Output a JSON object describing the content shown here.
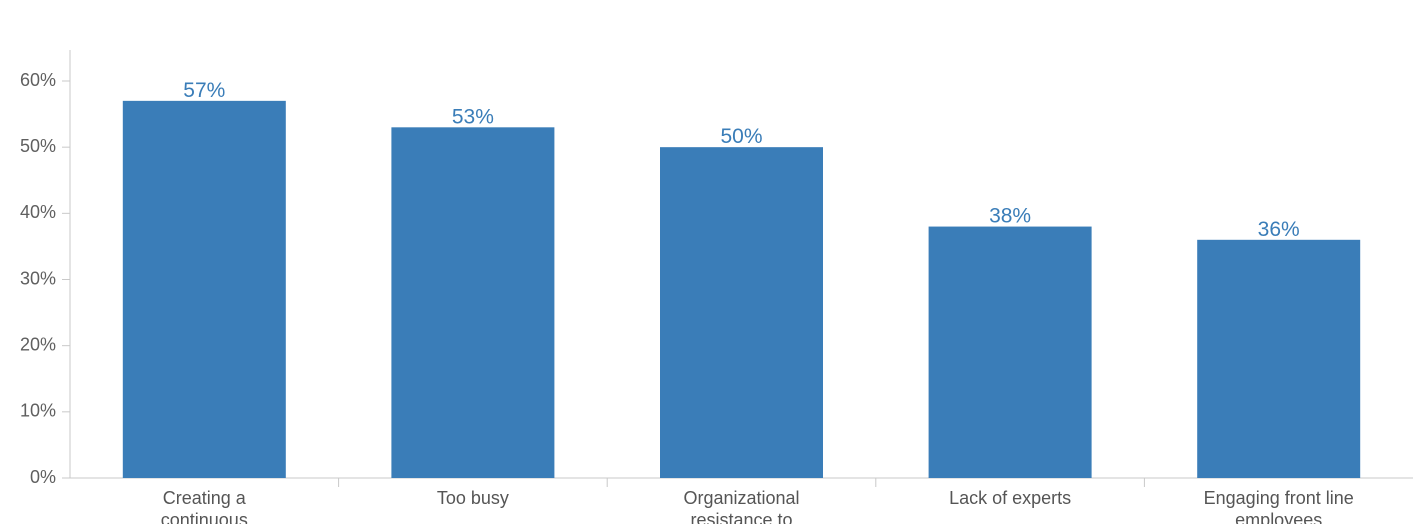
{
  "chart_data": {
    "type": "bar",
    "categories": [
      [
        "Creating a",
        "continuous"
      ],
      [
        "Too busy"
      ],
      [
        "Organizational",
        "resistance to"
      ],
      [
        "Lack of experts"
      ],
      [
        "Engaging front line",
        "employees"
      ]
    ],
    "values": [
      57,
      53,
      50,
      38,
      36
    ],
    "data_labels": [
      "57%",
      "53%",
      "50%",
      "38%",
      "36%"
    ],
    "yticks": [
      0,
      10,
      20,
      30,
      40,
      50,
      60
    ],
    "ytick_labels": [
      "0%",
      "10%",
      "20%",
      "30%",
      "40%",
      "50%",
      "60%"
    ],
    "ylim": [
      0,
      65
    ],
    "grid": false,
    "bar_color": "#3a7db8",
    "label_color": "#3a7db8"
  }
}
